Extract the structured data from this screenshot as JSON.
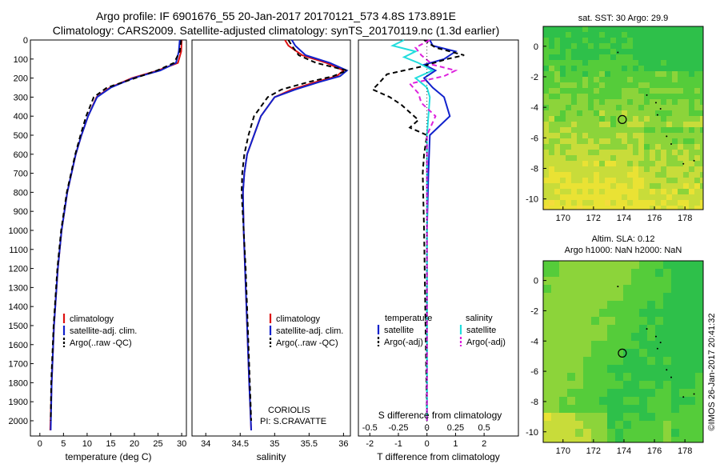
{
  "header": {
    "line1": "Argo profile: IF 6901676_55 20-Jan-2017 20170121_573 4.8S 173.891E",
    "line2": "Climatology: CARS2009. Satellite-adjusted climatology: synTS_20170119.nc (1.3d earlier)"
  },
  "credit": "©IMOS 26-Jan-2017 20:41:32",
  "map_marker": {
    "lon": 173.891,
    "lat": -4.8
  },
  "chart_data": [
    {
      "id": "temperature",
      "type": "line",
      "xlabel": "temperature (deg C)",
      "ylabel": "",
      "xlim": [
        -2,
        31
      ],
      "ylim": [
        2080,
        0
      ],
      "xticks": [
        0,
        5,
        10,
        15,
        20,
        25,
        30
      ],
      "yticks": [
        0,
        100,
        200,
        300,
        400,
        500,
        600,
        700,
        800,
        900,
        1000,
        1100,
        1200,
        1300,
        1400,
        1500,
        1600,
        1700,
        1800,
        1900,
        2000
      ],
      "legend": [
        "climatology",
        "satellite-adj. clim.",
        "Argo(..raw -QC)"
      ],
      "series": [
        {
          "name": "climatology",
          "color": "#dd1111",
          "dash": "",
          "depth": [
            0,
            60,
            120,
            160,
            200,
            250,
            300,
            400,
            500,
            600,
            800,
            1000,
            1200,
            1500,
            1800,
            2050
          ],
          "values": [
            30.0,
            29.9,
            29.2,
            25.0,
            19.5,
            14.8,
            12.0,
            10.2,
            8.8,
            7.6,
            5.8,
            4.6,
            3.8,
            3.0,
            2.5,
            2.2
          ]
        },
        {
          "name": "satellite-adj. clim.",
          "color": "#1122cc",
          "dash": "",
          "depth": [
            0,
            60,
            120,
            160,
            200,
            250,
            300,
            400,
            500,
            600,
            800,
            1000,
            1200,
            1500,
            1800,
            2050
          ],
          "values": [
            29.6,
            29.4,
            28.8,
            25.5,
            19.8,
            15.0,
            12.1,
            10.2,
            8.8,
            7.6,
            5.8,
            4.6,
            3.8,
            3.0,
            2.5,
            2.3
          ]
        },
        {
          "name": "Argo(..raw -QC)",
          "color": "#000000",
          "dash": "6,4",
          "depth": [
            0,
            60,
            120,
            160,
            200,
            250,
            300,
            350,
            400,
            500,
            600,
            800,
            1000,
            1200,
            1500,
            1800,
            2000
          ],
          "values": [
            29.9,
            29.6,
            28.4,
            24.8,
            20.2,
            14.2,
            11.4,
            10.6,
            9.8,
            8.6,
            7.5,
            5.7,
            4.5,
            3.7,
            2.9,
            2.4,
            2.3
          ]
        }
      ]
    },
    {
      "id": "salinity",
      "type": "line",
      "xlabel": "salinity",
      "xlim": [
        33.8,
        36.1
      ],
      "ylim": [
        2080,
        0
      ],
      "xticks": [
        34,
        34.5,
        35,
        35.5,
        36
      ],
      "xtick_labels": [
        "34",
        "34.5",
        "35",
        "35.5",
        "36"
      ],
      "legend": [
        "climatology",
        "satellite-adj. clim.",
        "Argo(..raw -QC)"
      ],
      "annotations": [
        "CORIOLIS",
        "PI: S.CRAVATTE"
      ],
      "series": [
        {
          "name": "climatology",
          "color": "#dd1111",
          "dash": "",
          "depth": [
            0,
            30,
            80,
            120,
            160,
            190,
            220,
            260,
            300,
            400,
            500,
            600,
            700,
            800,
            1000,
            1200,
            1500,
            1800,
            2050
          ],
          "values": [
            35.15,
            35.2,
            35.4,
            35.75,
            36.0,
            35.9,
            35.6,
            35.25,
            35.0,
            34.8,
            34.7,
            34.6,
            34.56,
            34.54,
            34.55,
            34.57,
            34.6,
            34.63,
            34.66
          ]
        },
        {
          "name": "satellite-adj. clim.",
          "color": "#1122cc",
          "dash": "",
          "depth": [
            0,
            30,
            80,
            120,
            160,
            190,
            220,
            260,
            300,
            400,
            500,
            600,
            700,
            800,
            1000,
            1200,
            1500,
            1800,
            2050
          ],
          "values": [
            35.25,
            35.3,
            35.45,
            35.8,
            36.05,
            35.95,
            35.65,
            35.3,
            35.0,
            34.8,
            34.7,
            34.6,
            34.56,
            34.54,
            34.55,
            34.57,
            34.6,
            34.63,
            34.66
          ]
        },
        {
          "name": "Argo(..raw -QC)",
          "color": "#000000",
          "dash": "6,4",
          "depth": [
            0,
            30,
            80,
            120,
            160,
            190,
            220,
            260,
            300,
            400,
            500,
            600,
            700,
            800,
            1000,
            1200,
            1500,
            1800,
            2000
          ],
          "values": [
            35.2,
            35.25,
            35.35,
            35.6,
            36.05,
            35.85,
            35.5,
            35.1,
            34.9,
            34.7,
            34.62,
            34.56,
            34.53,
            34.52,
            34.55,
            34.58,
            34.61,
            34.64,
            34.66
          ]
        }
      ]
    },
    {
      "id": "difference",
      "type": "line",
      "xlabel": "T difference from climatology",
      "top_label": "S difference from climatology",
      "xlim": [
        -2.4,
        3.2
      ],
      "ylim": [
        2080,
        0
      ],
      "xticks": [
        -2,
        -1,
        0,
        1,
        2
      ],
      "top_ticks": [
        -0.5,
        -0.25,
        0,
        0.25,
        0.5
      ],
      "top_tick_labels": [
        "-0.5",
        "-0.25",
        "0",
        "0.25",
        "0.5"
      ],
      "top_tick_positions": [
        -2,
        -1,
        0,
        1,
        2
      ],
      "legend_headers": [
        "temperature",
        "salinity"
      ],
      "legend": [
        "satellite",
        "Argo(-adj)",
        "satellite",
        "Argo(-adj)"
      ],
      "series": [
        {
          "name": "T satellite",
          "color": "#1122cc",
          "dash": "",
          "depth": [
            0,
            30,
            60,
            100,
            130,
            160,
            200,
            250,
            300,
            400,
            500,
            700,
            1000,
            1500,
            2000
          ],
          "values": [
            0.1,
            0.2,
            1.0,
            0.6,
            -0.1,
            0.3,
            -0.1,
            0.2,
            0.6,
            0.8,
            0.1,
            0.05,
            0.0,
            0.0,
            0.0
          ]
        },
        {
          "name": "T Argo(-adj)",
          "color": "#000000",
          "dash": "6,4",
          "depth": [
            0,
            40,
            80,
            100,
            140,
            180,
            230,
            260,
            300,
            340,
            420,
            460,
            500,
            600,
            700,
            1000,
            1500,
            2000
          ],
          "values": [
            -0.1,
            0.3,
            1.3,
            0.7,
            -0.2,
            -1.4,
            -1.7,
            -1.9,
            -1.3,
            -0.9,
            -0.3,
            -0.6,
            0.0,
            -0.1,
            -0.15,
            -0.1,
            -0.05,
            0.0
          ]
        },
        {
          "name": "S satellite",
          "color": "#22dddd",
          "dash": "",
          "depth": [
            0,
            30,
            60,
            90,
            120,
            160,
            200,
            250,
            300,
            500,
            1000,
            2000
          ],
          "values": [
            -0.8,
            -1.2,
            -0.4,
            -0.8,
            -0.3,
            0.2,
            -0.4,
            0.0,
            0.1,
            0.0,
            0.0,
            0.0
          ]
        },
        {
          "name": "S Argo(-adj)",
          "color": "#dd22dd",
          "dash": "6,4",
          "depth": [
            0,
            40,
            80,
            130,
            160,
            190,
            230,
            280,
            330,
            400,
            500,
            700,
            1000,
            2000
          ],
          "values": [
            0.1,
            -0.4,
            -0.2,
            0.2,
            1.0,
            0.6,
            -0.6,
            -0.3,
            -0.2,
            0.3,
            0.0,
            0.0,
            0.0,
            0.0
          ]
        }
      ]
    },
    {
      "id": "sst-map",
      "type": "heatmap",
      "title": "sat. SST: 30 Argo: 29.9",
      "xlim": [
        168.7,
        179.2
      ],
      "ylim": [
        -10.7,
        1.3
      ],
      "xticks": [
        170,
        172,
        174,
        176,
        178
      ],
      "yticks": [
        0,
        -2,
        -4,
        -6,
        -8,
        -10
      ],
      "palette": [
        "#2ec04a",
        "#55cc3a",
        "#8cd43a",
        "#c8dc3a",
        "#eae234",
        "#f4dc3c",
        "#f0c840"
      ]
    },
    {
      "id": "sla-map",
      "type": "heatmap",
      "title": "Altim. SLA: 0.12",
      "subtitle": "Argo h1000: NaN h2000: NaN",
      "xlim": [
        168.7,
        179.2
      ],
      "ylim": [
        -10.7,
        1.3
      ],
      "xticks": [
        170,
        172,
        174,
        176,
        178
      ],
      "yticks": [
        0,
        -2,
        -4,
        -6,
        -8,
        -10
      ],
      "palette": [
        "#2ec04a",
        "#55cc3a",
        "#8cd43a",
        "#c8dc3a",
        "#eae234"
      ]
    }
  ]
}
